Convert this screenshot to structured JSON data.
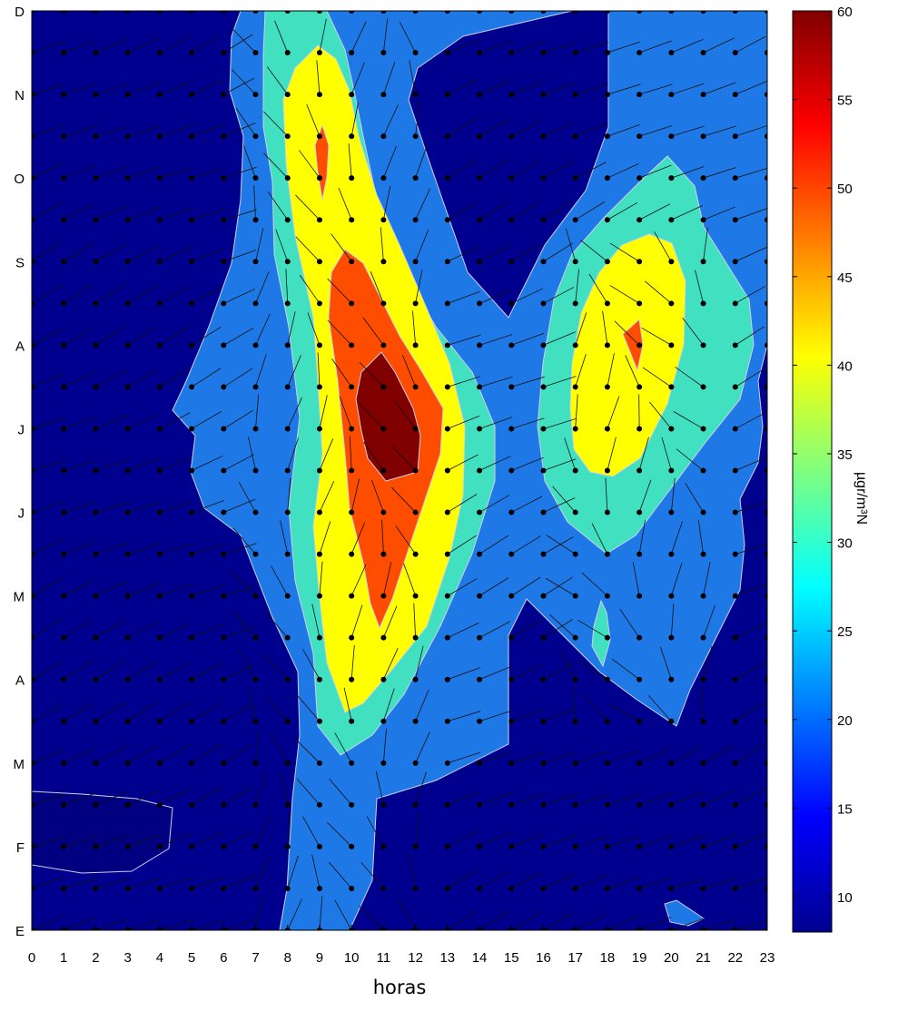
{
  "chart_data": {
    "type": "heatmap",
    "title": "",
    "xlabel": "horas",
    "ylabel": "",
    "x_ticks": [
      "0",
      "1",
      "2",
      "3",
      "4",
      "5",
      "6",
      "7",
      "8",
      "9",
      "10",
      "11",
      "12",
      "13",
      "14",
      "15",
      "16",
      "17",
      "18",
      "19",
      "20",
      "21",
      "22",
      "23"
    ],
    "y_ticks": [
      "E",
      "F",
      "M",
      "A",
      "M",
      "J",
      "J",
      "A",
      "S",
      "O",
      "N",
      "D"
    ],
    "colorbar": {
      "label": "µgr/m³N",
      "ticks": [
        "10",
        "15",
        "20",
        "25",
        "30",
        "35",
        "40",
        "45",
        "50",
        "55",
        "60"
      ],
      "range": [
        8,
        60
      ],
      "colormap": "jet"
    },
    "contour_levels": [
      10,
      20,
      30,
      40,
      50,
      55
    ],
    "contour_fill_colors": [
      "#00008f",
      "#1e78e6",
      "#40e0c0",
      "#ffff00",
      "#ff4d00",
      "#800000"
    ],
    "overlay": "wind direction vectors at each hour, semi-month grid point",
    "grid": false
  }
}
